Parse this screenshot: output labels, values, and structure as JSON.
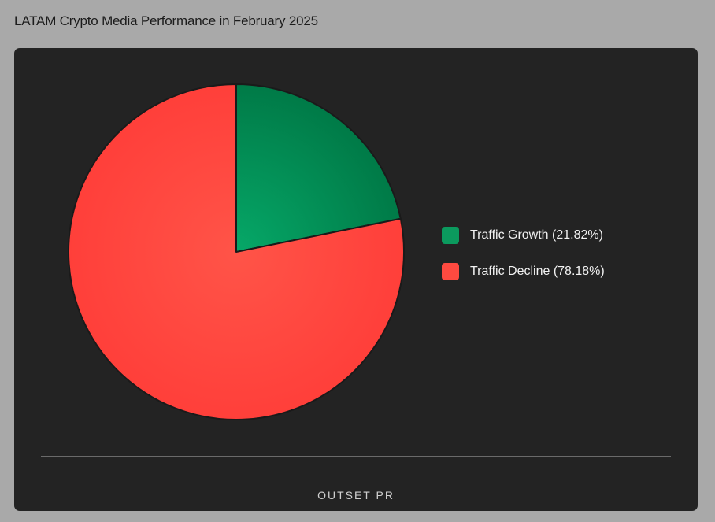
{
  "title": "LATAM Crypto Media Performance in February 2025",
  "brand": "OUTSET PR",
  "chart_data": {
    "type": "pie",
    "title": "LATAM Crypto Media Performance in February 2025",
    "slices": [
      {
        "label": "Traffic Growth (21.82%)",
        "value": 21.82,
        "color": "#0b9a5e"
      },
      {
        "label": "Traffic Decline (78.18%)",
        "value": 78.18,
        "color": "#ff4a40"
      }
    ],
    "start_angle": "12 o'clock",
    "direction": "clockwise",
    "legend_position": "right"
  }
}
